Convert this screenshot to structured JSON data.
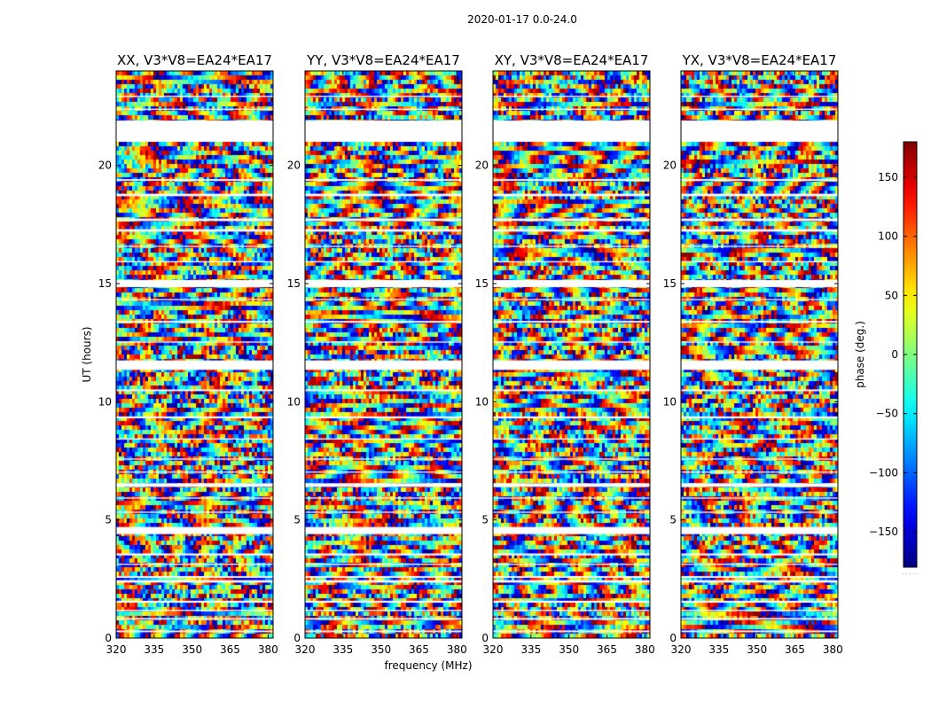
{
  "chart_data": {
    "type": "heatmap",
    "title": "2020-01-17 0.0-24.0",
    "xlabel": "frequency (MHz)",
    "ylabel": "UT (hours)",
    "colorbar_label": "phase (deg.)",
    "colormap": "jet",
    "xlim": [
      320,
      382
    ],
    "ylim": [
      0,
      24
    ],
    "xticks": [
      "320",
      "335",
      "350",
      "365",
      "380"
    ],
    "yticks": [
      "0",
      "5",
      "10",
      "15",
      "20"
    ],
    "colorbar_range": [
      -180,
      180
    ],
    "colorbar_ticks": [
      "150",
      "100",
      "50",
      "0",
      "−50",
      "−100",
      "−150"
    ],
    "colorbar_note": ". . . . .",
    "panels": [
      {
        "title": "XX, V3*V8=EA24*EA17"
      },
      {
        "title": "YY, V3*V8=EA24*EA17"
      },
      {
        "title": "XY, V3*V8=EA24*EA17"
      },
      {
        "title": "YX, V3*V8=EA24*EA17"
      }
    ],
    "flagged_hours": [
      [
        0.25,
        0.32
      ],
      [
        0.78,
        0.85
      ],
      [
        1.15,
        1.2
      ],
      [
        1.5,
        1.58
      ],
      [
        2.35,
        2.45
      ],
      [
        2.55,
        2.62
      ],
      [
        3.1,
        3.15
      ],
      [
        3.5,
        3.58
      ],
      [
        4.4,
        4.7
      ],
      [
        5.3,
        5.35
      ],
      [
        5.9,
        5.95
      ],
      [
        6.4,
        6.55
      ],
      [
        7.0,
        7.05
      ],
      [
        7.55,
        7.6
      ],
      [
        8.4,
        8.45
      ],
      [
        9.3,
        9.38
      ],
      [
        10.45,
        10.52
      ],
      [
        11.35,
        11.75
      ],
      [
        12.5,
        12.55
      ],
      [
        13.35,
        13.42
      ],
      [
        14.3,
        14.35
      ],
      [
        14.85,
        15.15
      ],
      [
        15.9,
        15.95
      ],
      [
        16.55,
        16.6
      ],
      [
        17.2,
        17.3
      ],
      [
        17.65,
        17.75
      ],
      [
        18.7,
        18.8
      ],
      [
        19.35,
        19.42
      ],
      [
        21.0,
        21.9
      ],
      [
        22.35,
        22.4
      ],
      [
        22.9,
        22.95
      ]
    ]
  }
}
